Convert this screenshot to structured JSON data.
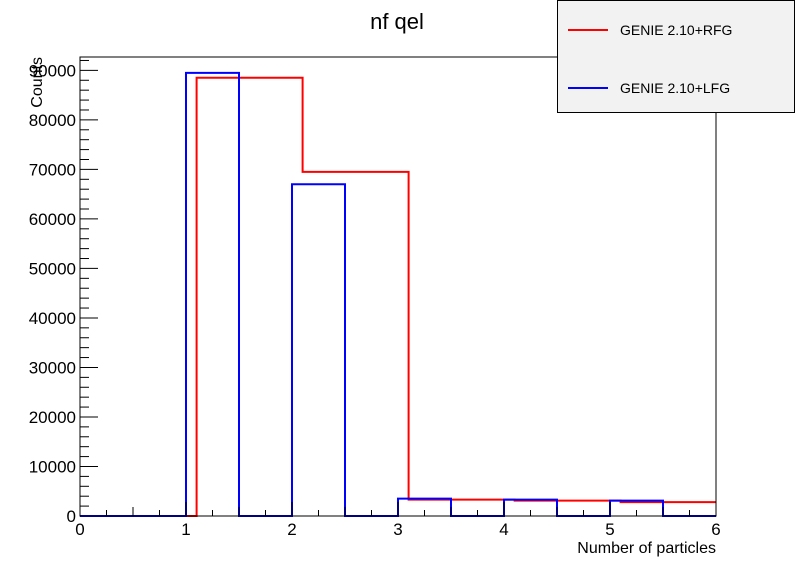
{
  "chart_data": {
    "type": "histogram",
    "title": "nf qel",
    "xlabel": "Number of particles",
    "ylabel": "Counts",
    "xlim": [
      0,
      6
    ],
    "ylim": [
      0,
      90000
    ],
    "xticks": [
      "0",
      "1",
      "2",
      "3",
      "4",
      "5",
      "6"
    ],
    "yticks": [
      "0",
      "10000",
      "20000",
      "30000",
      "40000",
      "50000",
      "60000",
      "70000",
      "80000",
      "90000"
    ],
    "legend_position": "top-right",
    "series": [
      {
        "name": "GENIE 2.10+RFG",
        "color": "#ff0000",
        "bins": [
          {
            "x0": 0,
            "x1": 1.1,
            "value": 0
          },
          {
            "x0": 1.1,
            "x1": 2.1,
            "value": 88500
          },
          {
            "x0": 2.1,
            "x1": 3.1,
            "value": 69500
          },
          {
            "x0": 3.1,
            "x1": 4.1,
            "value": 3300
          },
          {
            "x0": 4.1,
            "x1": 5.1,
            "value": 3100
          },
          {
            "x0": 5.1,
            "x1": 6.0,
            "value": 2800
          }
        ]
      },
      {
        "name": "GENIE 2.10+LFG",
        "color": "#0000ff",
        "bins": [
          {
            "x0": 0,
            "x1": 1.0,
            "value": 0
          },
          {
            "x0": 1.0,
            "x1": 1.5,
            "value": 89500
          },
          {
            "x0": 1.5,
            "x1": 2.0,
            "value": 0
          },
          {
            "x0": 2.0,
            "x1": 2.5,
            "value": 67000
          },
          {
            "x0": 2.5,
            "x1": 3.0,
            "value": 0
          },
          {
            "x0": 3.0,
            "x1": 3.5,
            "value": 3500
          },
          {
            "x0": 3.5,
            "x1": 4.0,
            "value": 0
          },
          {
            "x0": 4.0,
            "x1": 4.5,
            "value": 3300
          },
          {
            "x0": 4.5,
            "x1": 5.0,
            "value": 0
          },
          {
            "x0": 5.0,
            "x1": 5.5,
            "value": 3100
          },
          {
            "x0": 5.5,
            "x1": 6.0,
            "value": 0
          }
        ]
      }
    ]
  }
}
